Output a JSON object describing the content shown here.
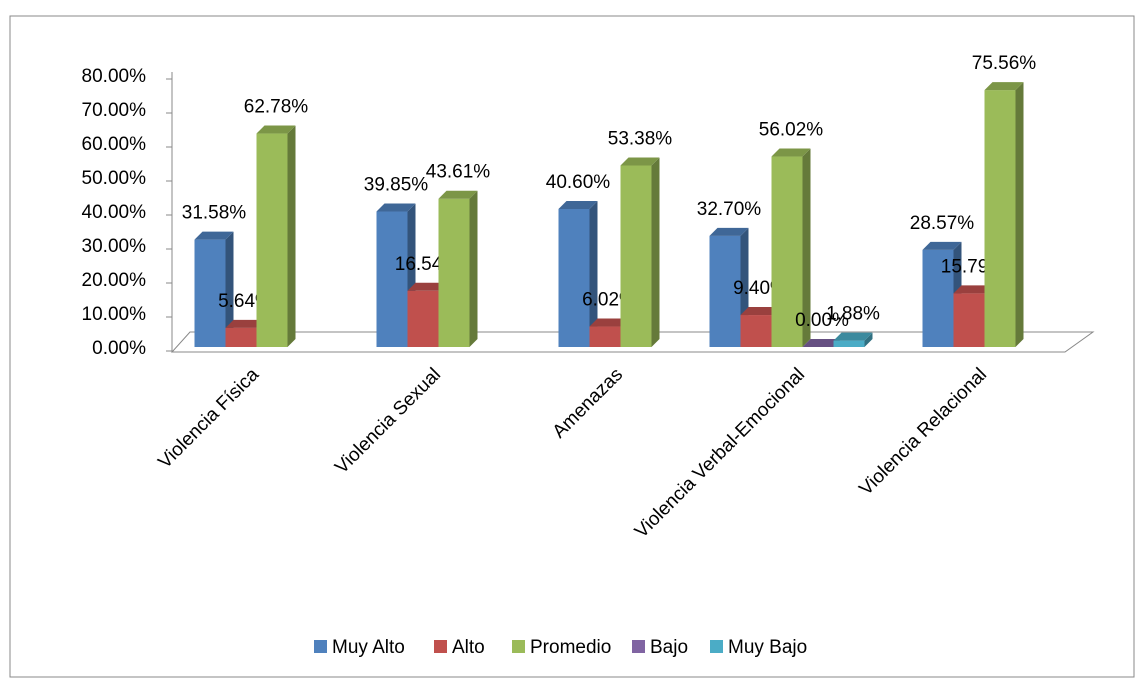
{
  "chart_data": {
    "type": "bar3d",
    "categories": [
      "Violencia Física",
      "Violencia Sexual",
      "Amenazas",
      "Violencia Verbal-Emocional",
      "Violencia Relacional"
    ],
    "series": [
      {
        "name": "Muy Alto",
        "color": "#4f81bd",
        "values": [
          31.58,
          39.85,
          40.6,
          32.7,
          28.57
        ],
        "value_labels": [
          "31.58%",
          "39.85%",
          "40.60%",
          "32.70%",
          "28.57%"
        ]
      },
      {
        "name": "Alto",
        "color": "#c0504d",
        "values": [
          5.64,
          16.54,
          6.02,
          9.4,
          15.79
        ],
        "value_labels": [
          "5.64%",
          "16.54%",
          "6.02%",
          "9.40%",
          "15.79%"
        ]
      },
      {
        "name": "Promedio",
        "color": "#9bbb59",
        "values": [
          62.78,
          43.61,
          53.38,
          56.02,
          75.56
        ],
        "value_labels": [
          "62.78%",
          "43.61%",
          "53.38%",
          "56.02%",
          "75.56%"
        ]
      },
      {
        "name": "Bajo",
        "color": "#8064a2",
        "values": [
          null,
          null,
          null,
          0.0,
          null
        ],
        "value_labels": [
          null,
          null,
          null,
          "0.00%",
          null
        ]
      },
      {
        "name": "Muy Bajo",
        "color": "#4bacc6",
        "values": [
          null,
          null,
          null,
          1.88,
          null
        ],
        "value_labels": [
          null,
          null,
          null,
          "1.88%",
          null
        ]
      }
    ],
    "ylim": [
      0,
      80
    ],
    "yticks": [
      {
        "value": 0,
        "label": "0.00%"
      },
      {
        "value": 10,
        "label": "10.00%"
      },
      {
        "value": 20,
        "label": "20.00%"
      },
      {
        "value": 30,
        "label": "30.00%"
      },
      {
        "value": 40,
        "label": "40.00%"
      },
      {
        "value": 50,
        "label": "50.00%"
      },
      {
        "value": 60,
        "label": "60.00%"
      },
      {
        "value": 70,
        "label": "70.00%"
      },
      {
        "value": 80,
        "label": "80.00%"
      }
    ],
    "legend": "bottom"
  }
}
